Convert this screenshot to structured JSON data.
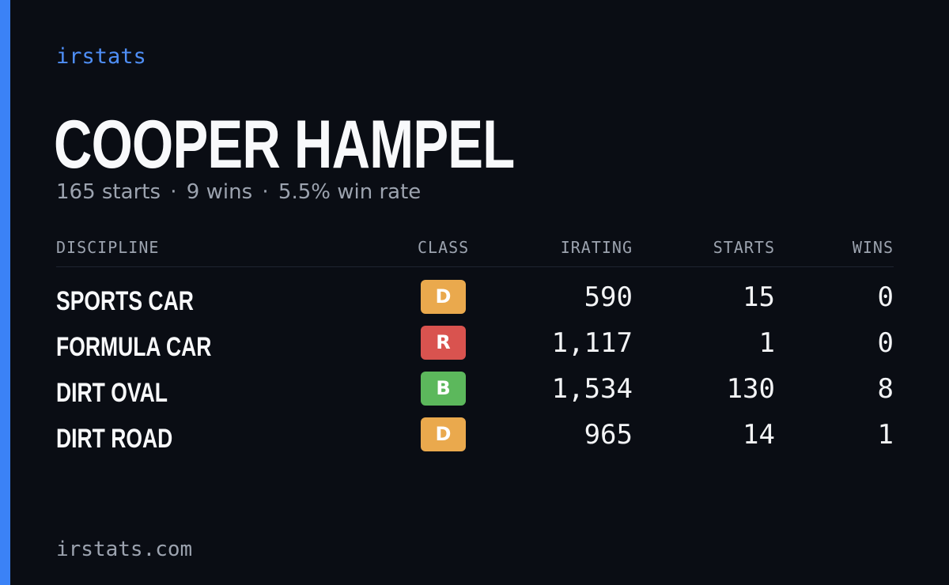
{
  "brand": "irstats",
  "driver_name": "COOPER HAMPEL",
  "summary": {
    "starts": "165 starts",
    "wins": "9 wins",
    "win_rate": "5.5% win rate",
    "separator": "·"
  },
  "table": {
    "headers": {
      "discipline": "DISCIPLINE",
      "class": "CLASS",
      "irating": "IRATING",
      "starts": "STARTS",
      "wins": "WINS"
    },
    "rows": [
      {
        "discipline": "SPORTS CAR",
        "class": "D",
        "class_color": "#eaa94d",
        "irating": "590",
        "starts": "15",
        "wins": "0"
      },
      {
        "discipline": "FORMULA CAR",
        "class": "R",
        "class_color": "#d9534f",
        "irating": "1,117",
        "starts": "1",
        "wins": "0"
      },
      {
        "discipline": "DIRT OVAL",
        "class": "B",
        "class_color": "#5cb85c",
        "irating": "1,534",
        "starts": "130",
        "wins": "8"
      },
      {
        "discipline": "DIRT ROAD",
        "class": "D",
        "class_color": "#eaa94d",
        "irating": "965",
        "starts": "14",
        "wins": "1"
      }
    ]
  },
  "footer": "irstats.com",
  "colors": {
    "accent": "#3b82f6",
    "background": "#0a0d14"
  }
}
